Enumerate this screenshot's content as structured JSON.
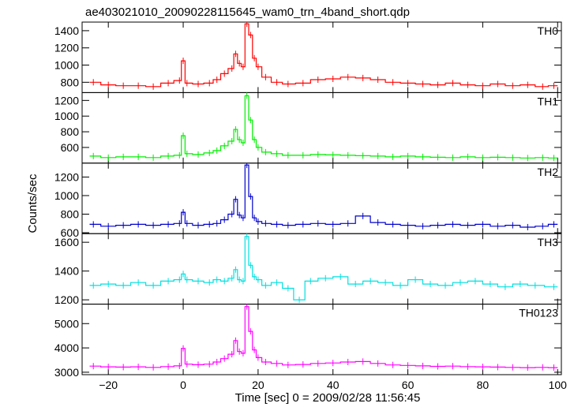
{
  "chart_data": {
    "type": "line",
    "title": "ae403021010_20090228115645_wam0_trn_4band_short.qdp",
    "xlabel": "Time [sec] 0 = 2009/02/28 11:56:45",
    "ylabel": "Counts/sec",
    "xlim": [
      -27,
      101
    ],
    "x_ticks": [
      -20,
      0,
      20,
      40,
      60,
      80,
      100
    ],
    "grid": false,
    "panels": [
      {
        "name": "TH0",
        "color": "#ff0000",
        "ylim": [
          680,
          1500
        ],
        "y_ticks": [
          800,
          1000,
          1200,
          1400
        ],
        "series": [
          {
            "x": -24,
            "y": 800
          },
          {
            "x": -20,
            "y": 770
          },
          {
            "x": -16,
            "y": 760
          },
          {
            "x": -12,
            "y": 760
          },
          {
            "x": -8,
            "y": 750
          },
          {
            "x": -4,
            "y": 790
          },
          {
            "x": -1,
            "y": 820
          },
          {
            "x": 0,
            "y": 1050
          },
          {
            "x": 1,
            "y": 790
          },
          {
            "x": 4,
            "y": 780
          },
          {
            "x": 7,
            "y": 790
          },
          {
            "x": 9,
            "y": 830
          },
          {
            "x": 11,
            "y": 900
          },
          {
            "x": 13,
            "y": 960
          },
          {
            "x": 14,
            "y": 1130
          },
          {
            "x": 15,
            "y": 1020
          },
          {
            "x": 16,
            "y": 980
          },
          {
            "x": 17,
            "y": 1480
          },
          {
            "x": 18,
            "y": 1350
          },
          {
            "x": 19,
            "y": 1080
          },
          {
            "x": 20,
            "y": 980
          },
          {
            "x": 22,
            "y": 860
          },
          {
            "x": 25,
            "y": 800
          },
          {
            "x": 28,
            "y": 780
          },
          {
            "x": 32,
            "y": 790
          },
          {
            "x": 36,
            "y": 830
          },
          {
            "x": 40,
            "y": 840
          },
          {
            "x": 44,
            "y": 860
          },
          {
            "x": 48,
            "y": 850
          },
          {
            "x": 52,
            "y": 830
          },
          {
            "x": 56,
            "y": 800
          },
          {
            "x": 60,
            "y": 790
          },
          {
            "x": 64,
            "y": 780
          },
          {
            "x": 68,
            "y": 770
          },
          {
            "x": 72,
            "y": 790
          },
          {
            "x": 76,
            "y": 770
          },
          {
            "x": 80,
            "y": 760
          },
          {
            "x": 84,
            "y": 780
          },
          {
            "x": 88,
            "y": 760
          },
          {
            "x": 92,
            "y": 770
          },
          {
            "x": 96,
            "y": 750
          },
          {
            "x": 99,
            "y": 760
          }
        ]
      },
      {
        "name": "TH1",
        "color": "#00ee00",
        "ylim": [
          400,
          1300
        ],
        "y_ticks": [
          600,
          800,
          1000,
          1200
        ],
        "series": [
          {
            "x": -24,
            "y": 490
          },
          {
            "x": -20,
            "y": 470
          },
          {
            "x": -16,
            "y": 480
          },
          {
            "x": -12,
            "y": 480
          },
          {
            "x": -8,
            "y": 470
          },
          {
            "x": -4,
            "y": 490
          },
          {
            "x": -1,
            "y": 500
          },
          {
            "x": 0,
            "y": 750
          },
          {
            "x": 1,
            "y": 520
          },
          {
            "x": 4,
            "y": 510
          },
          {
            "x": 7,
            "y": 530
          },
          {
            "x": 9,
            "y": 560
          },
          {
            "x": 11,
            "y": 620
          },
          {
            "x": 13,
            "y": 680
          },
          {
            "x": 14,
            "y": 830
          },
          {
            "x": 15,
            "y": 700
          },
          {
            "x": 16,
            "y": 660
          },
          {
            "x": 17,
            "y": 1260
          },
          {
            "x": 18,
            "y": 950
          },
          {
            "x": 19,
            "y": 700
          },
          {
            "x": 20,
            "y": 600
          },
          {
            "x": 22,
            "y": 540
          },
          {
            "x": 25,
            "y": 520
          },
          {
            "x": 28,
            "y": 500
          },
          {
            "x": 32,
            "y": 500
          },
          {
            "x": 36,
            "y": 510
          },
          {
            "x": 40,
            "y": 505
          },
          {
            "x": 44,
            "y": 500
          },
          {
            "x": 48,
            "y": 495
          },
          {
            "x": 52,
            "y": 490
          },
          {
            "x": 56,
            "y": 480
          },
          {
            "x": 60,
            "y": 490
          },
          {
            "x": 64,
            "y": 480
          },
          {
            "x": 68,
            "y": 475
          },
          {
            "x": 72,
            "y": 470
          },
          {
            "x": 76,
            "y": 480
          },
          {
            "x": 80,
            "y": 470
          },
          {
            "x": 84,
            "y": 475
          },
          {
            "x": 88,
            "y": 470
          },
          {
            "x": 92,
            "y": 465
          },
          {
            "x": 96,
            "y": 470
          },
          {
            "x": 99,
            "y": 465
          }
        ]
      },
      {
        "name": "TH2",
        "color": "#0000cc",
        "ylim": [
          590,
          1350
        ],
        "y_ticks": [
          600,
          800,
          1000,
          1200
        ],
        "series": [
          {
            "x": -24,
            "y": 690
          },
          {
            "x": -20,
            "y": 670
          },
          {
            "x": -16,
            "y": 680
          },
          {
            "x": -12,
            "y": 690
          },
          {
            "x": -8,
            "y": 680
          },
          {
            "x": -4,
            "y": 690
          },
          {
            "x": -1,
            "y": 700
          },
          {
            "x": 0,
            "y": 820
          },
          {
            "x": 1,
            "y": 700
          },
          {
            "x": 4,
            "y": 680
          },
          {
            "x": 7,
            "y": 690
          },
          {
            "x": 9,
            "y": 700
          },
          {
            "x": 11,
            "y": 740
          },
          {
            "x": 13,
            "y": 800
          },
          {
            "x": 14,
            "y": 960
          },
          {
            "x": 15,
            "y": 790
          },
          {
            "x": 16,
            "y": 760
          },
          {
            "x": 17,
            "y": 1330
          },
          {
            "x": 18,
            "y": 990
          },
          {
            "x": 19,
            "y": 760
          },
          {
            "x": 20,
            "y": 720
          },
          {
            "x": 22,
            "y": 700
          },
          {
            "x": 25,
            "y": 690
          },
          {
            "x": 28,
            "y": 680
          },
          {
            "x": 32,
            "y": 690
          },
          {
            "x": 36,
            "y": 700
          },
          {
            "x": 40,
            "y": 690
          },
          {
            "x": 44,
            "y": 700
          },
          {
            "x": 48,
            "y": 780
          },
          {
            "x": 52,
            "y": 710
          },
          {
            "x": 56,
            "y": 690
          },
          {
            "x": 60,
            "y": 680
          },
          {
            "x": 64,
            "y": 670
          },
          {
            "x": 68,
            "y": 680
          },
          {
            "x": 72,
            "y": 690
          },
          {
            "x": 76,
            "y": 680
          },
          {
            "x": 80,
            "y": 690
          },
          {
            "x": 84,
            "y": 670
          },
          {
            "x": 88,
            "y": 680
          },
          {
            "x": 92,
            "y": 660
          },
          {
            "x": 96,
            "y": 670
          },
          {
            "x": 99,
            "y": 690
          }
        ]
      },
      {
        "name": "TH3",
        "color": "#00e0e0",
        "ylim": [
          1170,
          1660
        ],
        "y_ticks": [
          1200,
          1400,
          1600
        ],
        "series": [
          {
            "x": -24,
            "y": 1300
          },
          {
            "x": -20,
            "y": 1310
          },
          {
            "x": -16,
            "y": 1300
          },
          {
            "x": -12,
            "y": 1320
          },
          {
            "x": -8,
            "y": 1300
          },
          {
            "x": -4,
            "y": 1330
          },
          {
            "x": -1,
            "y": 1340
          },
          {
            "x": 0,
            "y": 1380
          },
          {
            "x": 1,
            "y": 1340
          },
          {
            "x": 4,
            "y": 1330
          },
          {
            "x": 7,
            "y": 1320
          },
          {
            "x": 9,
            "y": 1340
          },
          {
            "x": 11,
            "y": 1330
          },
          {
            "x": 13,
            "y": 1350
          },
          {
            "x": 14,
            "y": 1410
          },
          {
            "x": 15,
            "y": 1340
          },
          {
            "x": 16,
            "y": 1330
          },
          {
            "x": 17,
            "y": 1640
          },
          {
            "x": 18,
            "y": 1440
          },
          {
            "x": 19,
            "y": 1360
          },
          {
            "x": 20,
            "y": 1340
          },
          {
            "x": 22,
            "y": 1300
          },
          {
            "x": 25,
            "y": 1320
          },
          {
            "x": 28,
            "y": 1280
          },
          {
            "x": 31,
            "y": 1200
          },
          {
            "x": 34,
            "y": 1330
          },
          {
            "x": 38,
            "y": 1350
          },
          {
            "x": 42,
            "y": 1360
          },
          {
            "x": 46,
            "y": 1310
          },
          {
            "x": 50,
            "y": 1330
          },
          {
            "x": 54,
            "y": 1320
          },
          {
            "x": 58,
            "y": 1300
          },
          {
            "x": 62,
            "y": 1340
          },
          {
            "x": 66,
            "y": 1310
          },
          {
            "x": 70,
            "y": 1300
          },
          {
            "x": 74,
            "y": 1320
          },
          {
            "x": 78,
            "y": 1330
          },
          {
            "x": 82,
            "y": 1310
          },
          {
            "x": 86,
            "y": 1290
          },
          {
            "x": 90,
            "y": 1310
          },
          {
            "x": 94,
            "y": 1300
          },
          {
            "x": 99,
            "y": 1290
          }
        ]
      },
      {
        "name": "TH0123",
        "color": "#ff00ff",
        "ylim": [
          2900,
          5800
        ],
        "y_ticks": [
          3000,
          4000,
          5000
        ],
        "series": [
          {
            "x": -24,
            "y": 3250
          },
          {
            "x": -20,
            "y": 3220
          },
          {
            "x": -16,
            "y": 3210
          },
          {
            "x": -12,
            "y": 3220
          },
          {
            "x": -8,
            "y": 3200
          },
          {
            "x": -4,
            "y": 3230
          },
          {
            "x": -1,
            "y": 3260
          },
          {
            "x": 0,
            "y": 3980
          },
          {
            "x": 1,
            "y": 3330
          },
          {
            "x": 4,
            "y": 3310
          },
          {
            "x": 7,
            "y": 3330
          },
          {
            "x": 9,
            "y": 3420
          },
          {
            "x": 11,
            "y": 3560
          },
          {
            "x": 13,
            "y": 3740
          },
          {
            "x": 14,
            "y": 4300
          },
          {
            "x": 15,
            "y": 3850
          },
          {
            "x": 16,
            "y": 3780
          },
          {
            "x": 17,
            "y": 5700
          },
          {
            "x": 18,
            "y": 4680
          },
          {
            "x": 19,
            "y": 3920
          },
          {
            "x": 20,
            "y": 3600
          },
          {
            "x": 22,
            "y": 3420
          },
          {
            "x": 25,
            "y": 3360
          },
          {
            "x": 28,
            "y": 3300
          },
          {
            "x": 32,
            "y": 3320
          },
          {
            "x": 36,
            "y": 3360
          },
          {
            "x": 40,
            "y": 3380
          },
          {
            "x": 44,
            "y": 3420
          },
          {
            "x": 48,
            "y": 3440
          },
          {
            "x": 52,
            "y": 3360
          },
          {
            "x": 56,
            "y": 3300
          },
          {
            "x": 60,
            "y": 3280
          },
          {
            "x": 64,
            "y": 3260
          },
          {
            "x": 68,
            "y": 3240
          },
          {
            "x": 72,
            "y": 3250
          },
          {
            "x": 76,
            "y": 3230
          },
          {
            "x": 80,
            "y": 3220
          },
          {
            "x": 84,
            "y": 3210
          },
          {
            "x": 88,
            "y": 3200
          },
          {
            "x": 92,
            "y": 3190
          },
          {
            "x": 96,
            "y": 3200
          },
          {
            "x": 99,
            "y": 3190
          }
        ]
      }
    ]
  }
}
